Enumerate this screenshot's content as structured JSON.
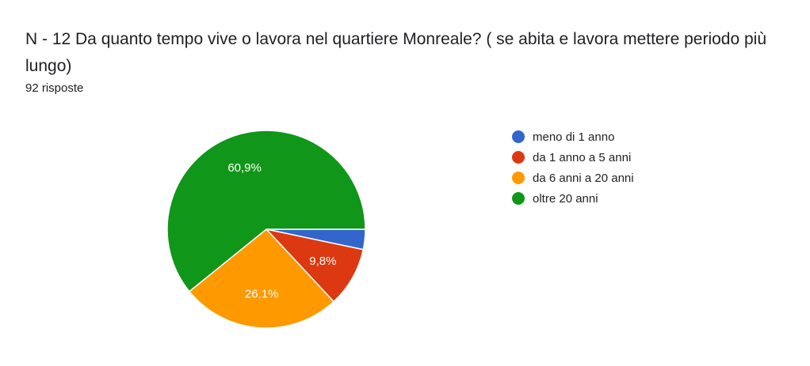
{
  "header": {
    "title": "N - 12  Da quanto tempo vive o lavora nel quartiere Monreale? ( se abita e lavora mettere periodo più lungo)",
    "responses": "92 risposte"
  },
  "chart_data": {
    "type": "pie",
    "categories": [
      "meno di 1 anno",
      "da 1 anno a 5 anni",
      "da 6 anni a 20 anni",
      "oltre 20 anni"
    ],
    "values": [
      3.3,
      9.8,
      26.1,
      60.9
    ],
    "colors": [
      "#3366cc",
      "#dc3912",
      "#ff9900",
      "#109618"
    ],
    "data_labels": [
      "",
      "9,8%",
      "26,1%",
      "60,9%"
    ],
    "legend_position": "right",
    "start_angle": "3 o'clock, clockwise"
  }
}
